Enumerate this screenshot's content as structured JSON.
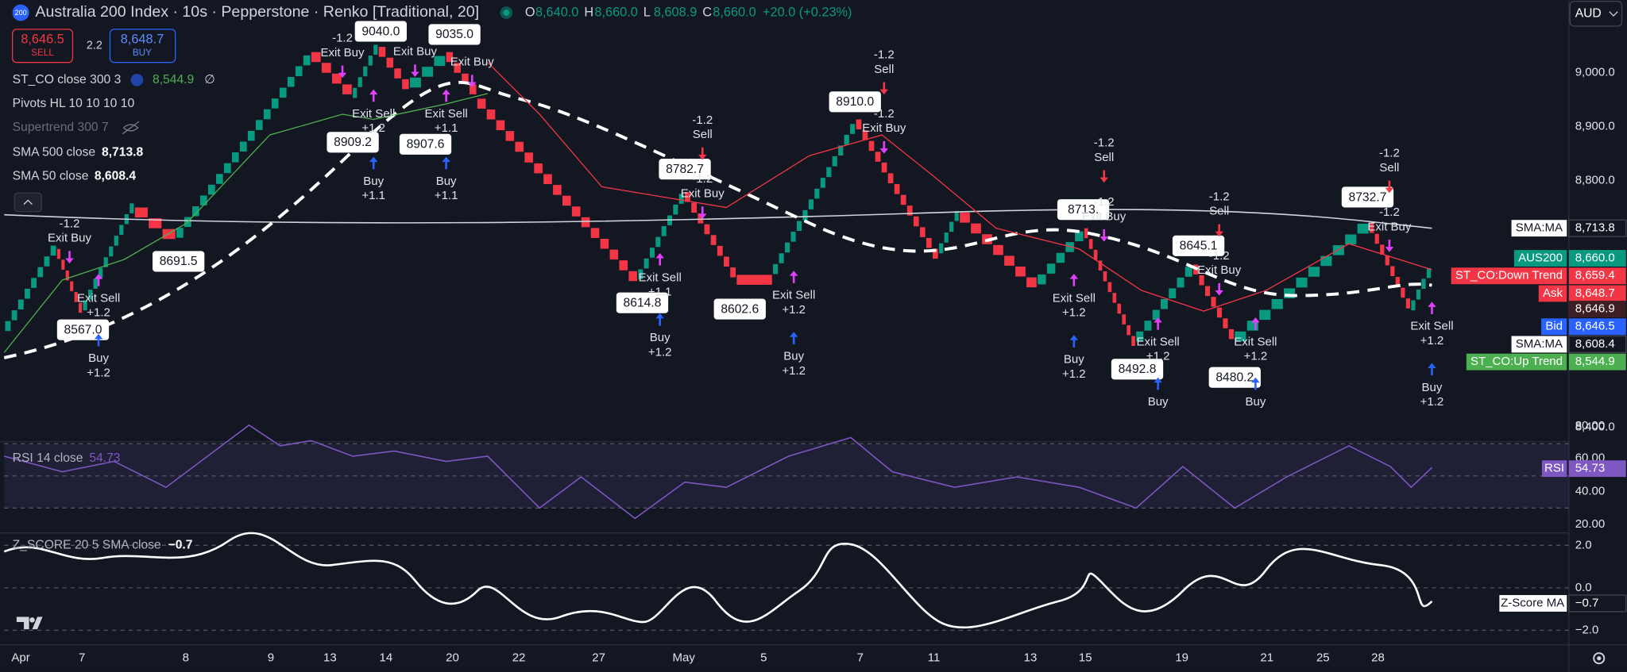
{
  "header": {
    "badge": "200",
    "title": "Australia 200 Index · 10s · Pepperstone · Renko [Traditional, 20]",
    "ohlc": [
      {
        "key": "O",
        "value": "8,640.0"
      },
      {
        "key": "H",
        "value": "8,660.0"
      },
      {
        "key": "L",
        "value": "8,608.9"
      },
      {
        "key": "C",
        "value": "8,660.0"
      }
    ],
    "change": "+20.0 (+0.23%)",
    "currency": "AUD"
  },
  "trade": {
    "sell_price": "8,646.5",
    "sell": "SELL",
    "spread": "2.2",
    "buy_price": "8,648.7",
    "buy": "BUY"
  },
  "indicators": [
    {
      "name": "ST_CO close 300 3",
      "value": "8,544.9",
      "extra": "∅"
    },
    {
      "name": "Pivots HL 10 10 10 10"
    },
    {
      "name": "Supertrend 300 7"
    },
    {
      "name": "SMA 500 close",
      "value": "8,713.8"
    },
    {
      "name": "SMA 50 close",
      "value": "8,608.4"
    }
  ],
  "price_axis": [
    "9,000.0",
    "8,900.0",
    "8,800.0",
    "8,400.0"
  ],
  "price_tags": [
    {
      "label": "SMA:MA",
      "value": "8,713.8"
    },
    {
      "label": "AUS200",
      "value": "8,660.0"
    },
    {
      "label": "ST_CO:Down Trend",
      "value": "8,659.4"
    },
    {
      "label": "Ask",
      "value": "8,648.7"
    },
    {
      "value": "8,646.9"
    },
    {
      "label": "Bid",
      "value": "8,646.5"
    },
    {
      "label": "SMA:MA",
      "value": "8,608.4"
    },
    {
      "label": "ST_CO:Up Trend",
      "value": "8,544.9"
    }
  ],
  "pivots": [
    "9040.0",
    "9035.0",
    "8909.2",
    "8907.6",
    "8910.0",
    "8782.7",
    "8691.5",
    "8567.0",
    "8614.8",
    "8602.6",
    "8713.",
    "8645.1",
    "8732.7",
    "8492.8",
    "8480.2"
  ],
  "signals": [
    {
      "lines": [
        "-1.2",
        "Exit Buy"
      ]
    },
    {
      "lines": [
        "Exit Sell",
        "+1.2"
      ]
    },
    {
      "lines": [
        "Buy",
        "+1.2"
      ]
    },
    {
      "lines": [
        "-1.2",
        "Exit Buy"
      ]
    },
    {
      "lines": [
        "Exit Sell",
        "+1.2"
      ]
    },
    {
      "lines": [
        "Buy",
        "+1.1"
      ]
    },
    {
      "lines": [
        "Exit Buy"
      ]
    },
    {
      "lines": [
        "Exit Sell",
        "+1.1"
      ]
    },
    {
      "lines": [
        "Buy",
        "+1.1"
      ]
    },
    {
      "lines": [
        "Exit Buy"
      ]
    },
    {
      "lines": [
        "-1.2",
        "Sell"
      ]
    },
    {
      "lines": [
        "-1.2",
        "Exit Buy"
      ]
    },
    {
      "lines": [
        "-1.2",
        "Sell"
      ]
    },
    {
      "lines": [
        "-1.2",
        "Exit Buy"
      ]
    },
    {
      "lines": [
        "Exit Sell",
        "+1.1"
      ]
    },
    {
      "lines": [
        "Buy",
        "+1.2"
      ]
    },
    {
      "lines": [
        "Exit Sell",
        "+1.2"
      ]
    },
    {
      "lines": [
        "Buy",
        "+1.2"
      ]
    },
    {
      "lines": [
        "-1.2",
        "Sell"
      ]
    },
    {
      "lines": [
        "-1.2",
        "Exit Buy"
      ]
    },
    {
      "lines": [
        "Exit Sell",
        "+1.2"
      ]
    },
    {
      "lines": [
        "Buy",
        "+1.2"
      ]
    },
    {
      "lines": [
        "-1.2",
        "Sell"
      ]
    },
    {
      "lines": [
        "-1.2",
        "Exit Buy"
      ]
    },
    {
      "lines": [
        "Exit Sell",
        "+1.2"
      ]
    },
    {
      "lines": [
        "Buy"
      ]
    },
    {
      "lines": [
        "Exit Sell",
        "+1.2"
      ]
    },
    {
      "lines": [
        "Buy"
      ]
    },
    {
      "lines": [
        "-1.2",
        "Sell"
      ]
    },
    {
      "lines": [
        "-1.2",
        "Exit Buy"
      ]
    },
    {
      "lines": [
        "Exit Sell",
        "+1.2"
      ]
    },
    {
      "lines": [
        "Buy",
        "+1.2"
      ]
    }
  ],
  "rsi": {
    "title": "RSI 14 close",
    "value": "54.73",
    "axis": [
      "80.00",
      "60.00",
      "40.00",
      "20.00"
    ],
    "tag_label": "RSI",
    "tag_value": "54.73"
  },
  "zscore": {
    "title": "Z_SCORE 20 5 SMA close",
    "value": "−0.7",
    "axis": [
      "2.0",
      "0.0",
      "−2.0"
    ],
    "tag_label": "Z-Score MA",
    "tag_value": "−0.7"
  },
  "time_axis": [
    "Apr",
    "7",
    "8",
    "9",
    "13",
    "14",
    "20",
    "22",
    "27",
    "May",
    "5",
    "7",
    "11",
    "13",
    "15",
    "19",
    "21",
    "25",
    "28"
  ]
}
